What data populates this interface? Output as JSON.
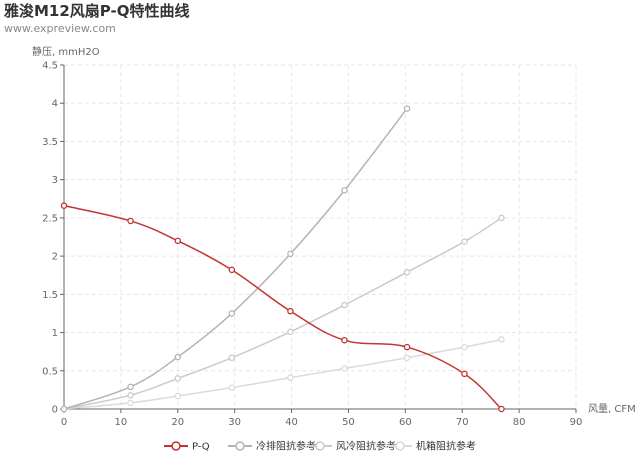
{
  "chart_data": {
    "type": "line",
    "title": "雅浚M12风扇P-Q特性曲线",
    "subtitle": "www.expreview.com",
    "xlabel": "风量, CFM",
    "ylabel": "静压, mmH2O",
    "xlim": [
      0,
      90
    ],
    "ylim": [
      0,
      4.5
    ],
    "x_ticks": [
      "0",
      "10",
      "20",
      "30",
      "40",
      "50",
      "60",
      "70",
      "80",
      "90"
    ],
    "y_ticks": [
      "0",
      "0.5",
      "1",
      "1.5",
      "2",
      "2.5",
      "3",
      "3.5",
      "4",
      "4.5"
    ],
    "grid": true,
    "legend_position": "bottom",
    "series": [
      {
        "name": "P-Q",
        "color": "#c23531",
        "points": [
          [
            0,
            2.66
          ],
          [
            11.7,
            2.46
          ],
          [
            20,
            2.2
          ],
          [
            29.5,
            1.82
          ],
          [
            39.8,
            1.28
          ],
          [
            49.3,
            0.9
          ],
          [
            60.3,
            0.81
          ],
          [
            70.4,
            0.46
          ],
          [
            76.9,
            0.0
          ]
        ]
      },
      {
        "name": "冷排阻抗参考",
        "color": "#b4b4b4",
        "points": [
          [
            0,
            0
          ],
          [
            11.7,
            0.29
          ],
          [
            20,
            0.68
          ],
          [
            29.5,
            1.25
          ],
          [
            39.8,
            2.03
          ],
          [
            49.3,
            2.86
          ],
          [
            60.3,
            3.93
          ]
        ]
      },
      {
        "name": "风冷阻抗参考",
        "color": "#cacaca",
        "points": [
          [
            0,
            0
          ],
          [
            11.7,
            0.18
          ],
          [
            20,
            0.4
          ],
          [
            29.5,
            0.67
          ],
          [
            39.8,
            1.01
          ],
          [
            49.3,
            1.36
          ],
          [
            60.3,
            1.79
          ],
          [
            70.4,
            2.19
          ],
          [
            76.9,
            2.5
          ]
        ]
      },
      {
        "name": "机箱阻抗参考",
        "color": "#dadada",
        "points": [
          [
            0,
            0
          ],
          [
            11.7,
            0.08
          ],
          [
            20,
            0.17
          ],
          [
            29.5,
            0.28
          ],
          [
            39.8,
            0.41
          ],
          [
            49.3,
            0.53
          ],
          [
            60.3,
            0.67
          ],
          [
            70.4,
            0.81
          ],
          [
            76.9,
            0.91
          ]
        ]
      }
    ]
  }
}
